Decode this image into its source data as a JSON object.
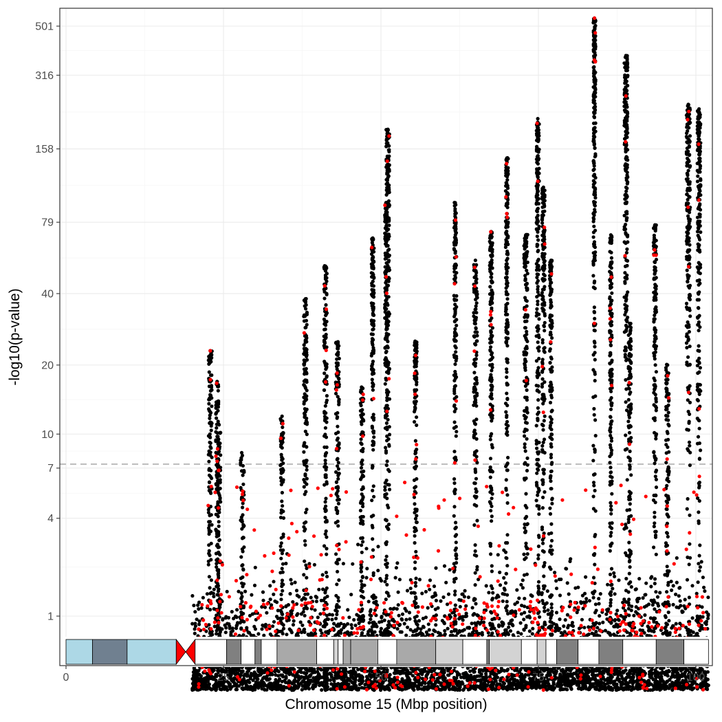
{
  "chart_data": {
    "type": "scatter",
    "title": "",
    "xlabel": "Chromosome 15 (Mbp position)",
    "ylabel": "-log10(p-value)",
    "x_ticks": [
      0,
      25,
      50,
      75,
      100
    ],
    "x_tick_labels": [
      "0",
      "25",
      "50",
      "75",
      "100"
    ],
    "xlim": [
      -1,
      102.5
    ],
    "y_scale": "log-like transformed",
    "y_ticks": [
      1,
      4,
      7,
      10,
      20,
      40,
      79,
      158,
      316,
      501
    ],
    "y_tick_labels": [
      "1",
      "4",
      "7",
      "10",
      "20",
      "40",
      "79",
      "158",
      "316",
      "501"
    ],
    "ylim": [
      0,
      560
    ],
    "threshold_line": {
      "value": 7.3,
      "style": "dashed",
      "color": "#bdbdbd"
    },
    "grid": true,
    "legend": "none",
    "series": [
      {
        "color": "#000000",
        "role": "all variants"
      },
      {
        "color": "#ff0000",
        "role": "highlighted variants"
      }
    ],
    "peaks": [
      {
        "x": 22.9,
        "y": 23
      },
      {
        "x": 24.0,
        "y": 17
      },
      {
        "x": 24.3,
        "y": 11
      },
      {
        "x": 28.0,
        "y": 8
      },
      {
        "x": 34.3,
        "y": 12
      },
      {
        "x": 38.0,
        "y": 38
      },
      {
        "x": 41.2,
        "y": 52
      },
      {
        "x": 43.1,
        "y": 25
      },
      {
        "x": 47.0,
        "y": 16
      },
      {
        "x": 48.7,
        "y": 68
      },
      {
        "x": 50.8,
        "y": 95
      },
      {
        "x": 51.1,
        "y": 190
      },
      {
        "x": 55.5,
        "y": 25
      },
      {
        "x": 61.8,
        "y": 95
      },
      {
        "x": 65.0,
        "y": 55
      },
      {
        "x": 67.5,
        "y": 72
      },
      {
        "x": 70.0,
        "y": 145
      },
      {
        "x": 73.0,
        "y": 70
      },
      {
        "x": 74.9,
        "y": 210
      },
      {
        "x": 75.8,
        "y": 110
      },
      {
        "x": 77.0,
        "y": 55
      },
      {
        "x": 83.9,
        "y": 540
      },
      {
        "x": 86.5,
        "y": 70
      },
      {
        "x": 88.9,
        "y": 380
      },
      {
        "x": 89.5,
        "y": 30
      },
      {
        "x": 93.5,
        "y": 77
      },
      {
        "x": 95.5,
        "y": 20
      },
      {
        "x": 98.8,
        "y": 240
      },
      {
        "x": 100.5,
        "y": 230
      }
    ],
    "ideogram": [
      {
        "start": 0.0,
        "end": 4.2,
        "type": "acen-like",
        "color": "#add8e6"
      },
      {
        "start": 4.2,
        "end": 9.7,
        "type": "stalk",
        "color": "#708090"
      },
      {
        "start": 9.7,
        "end": 17.5,
        "type": "acen-like",
        "color": "#add8e6"
      },
      {
        "start": 17.5,
        "end": 20.5,
        "type": "centromere",
        "color": "#ff0000"
      },
      {
        "start": 20.5,
        "end": 25.5,
        "type": "band",
        "color": "#ffffff"
      },
      {
        "start": 25.5,
        "end": 27.8,
        "type": "band",
        "color": "#808080"
      },
      {
        "start": 27.8,
        "end": 30.0,
        "type": "band",
        "color": "#ffffff"
      },
      {
        "start": 30.0,
        "end": 31.0,
        "type": "band",
        "color": "#808080"
      },
      {
        "start": 31.0,
        "end": 33.5,
        "type": "band",
        "color": "#ffffff"
      },
      {
        "start": 33.5,
        "end": 39.8,
        "type": "band",
        "color": "#a9a9a9"
      },
      {
        "start": 39.8,
        "end": 42.5,
        "type": "band",
        "color": "#ffffff"
      },
      {
        "start": 42.5,
        "end": 43.2,
        "type": "band",
        "color": "#d3d3d3"
      },
      {
        "start": 43.2,
        "end": 44.0,
        "type": "band",
        "color": "#ffffff"
      },
      {
        "start": 44.0,
        "end": 45.2,
        "type": "band",
        "color": "#a9a9a9"
      },
      {
        "start": 45.2,
        "end": 49.5,
        "type": "band",
        "color": "#a9a9a9"
      },
      {
        "start": 49.5,
        "end": 52.5,
        "type": "band",
        "color": "#ffffff"
      },
      {
        "start": 52.5,
        "end": 58.7,
        "type": "band",
        "color": "#a9a9a9"
      },
      {
        "start": 58.7,
        "end": 63.0,
        "type": "band",
        "color": "#d3d3d3"
      },
      {
        "start": 63.0,
        "end": 66.8,
        "type": "band",
        "color": "#ffffff"
      },
      {
        "start": 66.8,
        "end": 67.2,
        "type": "band",
        "color": "#808080"
      },
      {
        "start": 67.2,
        "end": 72.3,
        "type": "band",
        "color": "#d3d3d3"
      },
      {
        "start": 72.3,
        "end": 74.8,
        "type": "band",
        "color": "#ffffff"
      },
      {
        "start": 74.8,
        "end": 76.2,
        "type": "band",
        "color": "#d3d3d3"
      },
      {
        "start": 76.2,
        "end": 77.9,
        "type": "band",
        "color": "#ffffff"
      },
      {
        "start": 77.9,
        "end": 81.3,
        "type": "band",
        "color": "#808080"
      },
      {
        "start": 81.3,
        "end": 84.6,
        "type": "band",
        "color": "#ffffff"
      },
      {
        "start": 84.6,
        "end": 88.4,
        "type": "band",
        "color": "#808080"
      },
      {
        "start": 88.4,
        "end": 93.7,
        "type": "band",
        "color": "#ffffff"
      },
      {
        "start": 93.7,
        "end": 98.1,
        "type": "band",
        "color": "#808080"
      },
      {
        "start": 98.1,
        "end": 102.0,
        "type": "band",
        "color": "#ffffff"
      }
    ]
  }
}
